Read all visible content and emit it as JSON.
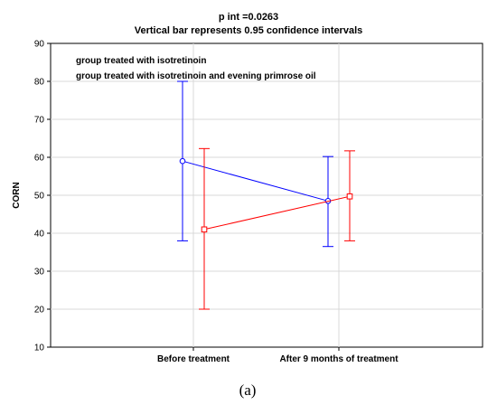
{
  "figure": {
    "caption": "(a)"
  },
  "chart_data": {
    "type": "line",
    "title": "p int =0.0263",
    "subtitle": "Vertical bar represents 0.95 confidence intervals",
    "xlabel": "",
    "ylabel": "CORN",
    "ylim": [
      10,
      90
    ],
    "yticks": [
      10,
      20,
      30,
      40,
      50,
      60,
      70,
      80,
      90
    ],
    "categories": [
      "Before treatment",
      "After 9 months of treatment"
    ],
    "grid": true,
    "legend_position": "top-left",
    "series": [
      {
        "name": "group treated with isotretinoin",
        "color": "#0000ff",
        "marker": "circle",
        "values": [
          59,
          48.5
        ],
        "ci_low": [
          38,
          36.5
        ],
        "ci_high": [
          80,
          60.2
        ]
      },
      {
        "name": "group treated with isotretinoin and evening primrose oil",
        "color": "#ff0000",
        "marker": "square",
        "values": [
          41,
          49.7
        ],
        "ci_low": [
          20,
          38
        ],
        "ci_high": [
          62.3,
          61.7
        ]
      }
    ]
  }
}
